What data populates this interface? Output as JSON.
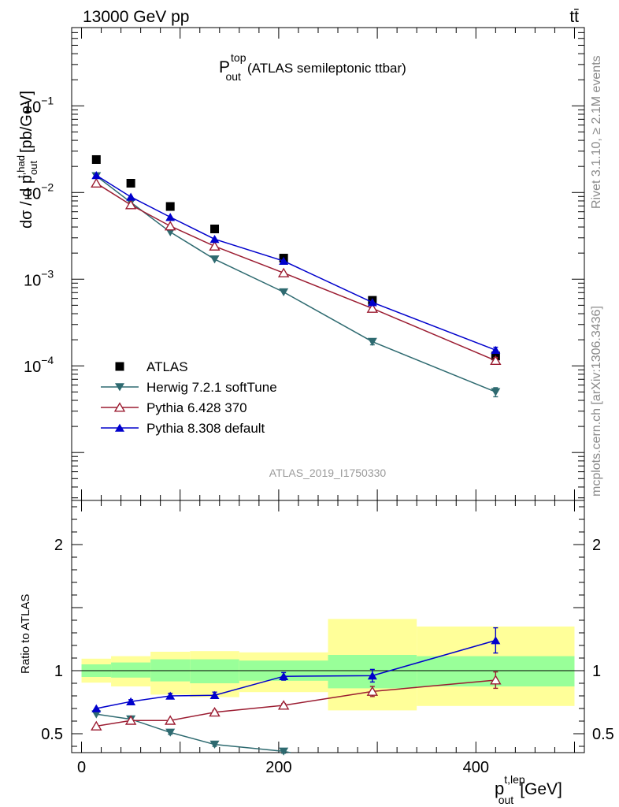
{
  "header": {
    "energy_label": "13000 GeV pp",
    "process_label": "tt̄",
    "plot_title": "P",
    "plot_title_sup": "top",
    "plot_title_sub": "out",
    "plot_title_rest": "(ATLAS semileptonic ttbar)",
    "analysis_id": "ATLAS_2019_I1750330",
    "side_label_top": "Rivet 3.1.10, ≥ 2.1M events",
    "side_label_bottom": "mcplots.cern.ch [arXiv:1306.3436]"
  },
  "chart_data": [
    {
      "type": "scatter",
      "panel": "main",
      "yscale": "log",
      "ylabel": "dσ / d p",
      "ylabel_sup": "t,had",
      "ylabel_sub": "out",
      "ylabel_unit": "[pb/GeV]",
      "xlim": [
        -10,
        510
      ],
      "ylim": [
        2.8e-06,
        0.8
      ],
      "y_ticks": [
        {
          "value": 0.1,
          "base": "10",
          "exp": "−1"
        },
        {
          "value": 0.01,
          "base": "10",
          "exp": "−2"
        },
        {
          "value": 0.001,
          "base": "10",
          "exp": "−3"
        },
        {
          "value": 0.0001,
          "base": "10",
          "exp": "−4"
        }
      ],
      "legend_position": "bottom-left",
      "series": [
        {
          "name": "ATLAS",
          "marker": "square",
          "color": "#000000",
          "x": [
            15,
            50,
            90,
            135,
            205,
            295,
            420
          ],
          "y": [
            0.024,
            0.0128,
            0.0069,
            0.0038,
            0.00175,
            0.00057,
            0.00013
          ]
        },
        {
          "name": "Herwig 7.2.1 softTune",
          "marker": "triangle-down",
          "color": "#2e6a70",
          "x": [
            15,
            50,
            90,
            135,
            205,
            295,
            420
          ],
          "y": [
            0.0155,
            0.0077,
            0.0035,
            0.0017,
            0.00071,
            0.00019,
            5e-05
          ],
          "err": [
            0,
            0,
            0,
            0,
            0,
            1.5e-05,
            6e-06
          ]
        },
        {
          "name": "Pythia 6.428 370",
          "marker": "triangle-up-open",
          "color": "#9b1c31",
          "x": [
            15,
            50,
            90,
            135,
            205,
            295,
            420
          ],
          "y": [
            0.0128,
            0.0072,
            0.0041,
            0.0024,
            0.00118,
            0.00046,
            0.000115
          ],
          "err": [
            0,
            0,
            0,
            0,
            0,
            0,
            1e-05
          ]
        },
        {
          "name": "Pythia 8.308 default",
          "marker": "triangle-up",
          "color": "#0000cc",
          "x": [
            15,
            50,
            90,
            135,
            205,
            295,
            420
          ],
          "y": [
            0.0158,
            0.0089,
            0.0052,
            0.0029,
            0.00162,
            0.00054,
            0.000152
          ],
          "err": [
            0,
            0,
            0,
            0,
            0,
            0,
            1.2e-05
          ]
        }
      ]
    },
    {
      "type": "scatter",
      "panel": "ratio",
      "ylabel": "Ratio to ATLAS",
      "xlabel": "p",
      "xlabel_sup": "t,lep",
      "xlabel_sub": "out",
      "xlabel_unit": "[GeV]",
      "xlim": [
        -10,
        510
      ],
      "ylim": [
        0.35,
        2.35
      ],
      "x_ticks": [
        0,
        200,
        400
      ],
      "y_ticks": [
        0.5,
        1,
        2
      ],
      "reference_line": 1,
      "bins": [
        0,
        30,
        70,
        110,
        160,
        250,
        340,
        500
      ],
      "band_yellow": [
        [
          0.905,
          1.095
        ],
        [
          0.875,
          1.115
        ],
        [
          0.81,
          1.15
        ],
        [
          0.79,
          1.155
        ],
        [
          0.83,
          1.145
        ],
        [
          0.685,
          1.41
        ],
        [
          0.72,
          1.35
        ]
      ],
      "band_green": [
        [
          0.95,
          1.05
        ],
        [
          0.945,
          1.065
        ],
        [
          0.915,
          1.09
        ],
        [
          0.9,
          1.09
        ],
        [
          0.92,
          1.08
        ],
        [
          0.86,
          1.125
        ],
        [
          0.875,
          1.115
        ]
      ],
      "series": [
        {
          "name": "Herwig 7.2.1 softTune",
          "color": "#2e6a70",
          "x": [
            15,
            50,
            90,
            135,
            205
          ],
          "y": [
            0.655,
            0.615,
            0.51,
            0.415,
            0.36
          ],
          "err": [
            0,
            0.01,
            0.015,
            0.015,
            0.015
          ]
        },
        {
          "name": "Pythia 6.428 370",
          "color": "#9b1c31",
          "x": [
            15,
            50,
            90,
            135,
            205,
            295,
            420
          ],
          "y": [
            0.56,
            0.605,
            0.605,
            0.67,
            0.725,
            0.835,
            0.925
          ],
          "err": [
            0,
            0,
            0.01,
            0.015,
            0.015,
            0.04,
            0.065
          ]
        },
        {
          "name": "Pythia 8.308 default",
          "color": "#0000cc",
          "x": [
            15,
            50,
            90,
            135,
            205,
            295,
            420
          ],
          "y": [
            0.7,
            0.755,
            0.8,
            0.805,
            0.955,
            0.96,
            1.24
          ],
          "err": [
            0,
            0.015,
            0.02,
            0.025,
            0.03,
            0.05,
            0.1
          ]
        }
      ]
    }
  ]
}
